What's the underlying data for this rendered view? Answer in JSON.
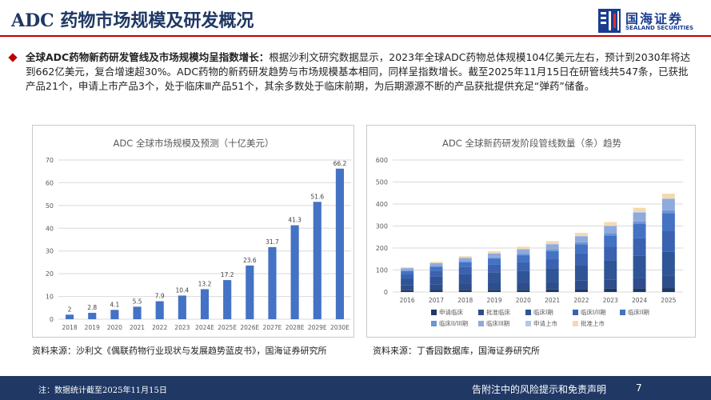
{
  "header": {
    "title": "ADC 药物市场规模及研发概况",
    "logo_cn": "国海证券",
    "logo_en": "SEALAND SECURITIES"
  },
  "summary": {
    "lead": "全球ADC药物新药研发管线及市场规模均呈指数增长：",
    "body": "根据沙利文研究数据显示，2023年全球ADC药物总体规模104亿美元左右，预计到2030年将达到662亿美元，复合增速超30%。ADC药物的新药研发趋势与市场规模基本相同，同样呈指数增长。截至2025年11月15日在研管线共547条，已获批产品21个，申请上市产品3个，处于临床Ⅲ产品51个，其余多数处于临床前期，为后期源源不断的产品获批提供充足“弹药”储备。"
  },
  "sources": {
    "left": "资料来源：沙利文《偶联药物行业现状与发展趋势蓝皮书》，国海证券研究所",
    "right": "资料来源：丁香园数据库，国海证券研究所"
  },
  "footer": {
    "note": "注：数据统计截至2025年11月15日",
    "disclaimer": "告附注中的风险提示和免责声明",
    "page": "7"
  },
  "colors": {
    "navy": "#1f3864",
    "red": "#c00000",
    "bar_blue": "#4472c4"
  },
  "chart_data": [
    {
      "type": "bar",
      "title": "ADC 全球市场规模及预测（十亿美元）",
      "categories": [
        "2018",
        "2019",
        "2020",
        "2021",
        "2022",
        "2023",
        "2024E",
        "2025E",
        "2026E",
        "2027E",
        "2028E",
        "2029E",
        "2030E"
      ],
      "values": [
        2,
        2.8,
        4.1,
        5.5,
        7.9,
        10.4,
        13.2,
        17.2,
        23.6,
        31.7,
        41.3,
        51.6,
        66.2
      ],
      "data_labels": [
        "2",
        "2.8",
        "4.1",
        "5.5",
        "7.9",
        "10.4",
        "13.2",
        "17.2",
        "23.6",
        "31.7",
        "41.3",
        "51.6",
        "66.2"
      ],
      "ylim": [
        0,
        70
      ],
      "yticks": [
        "0",
        "10",
        "20",
        "30",
        "40",
        "50",
        "60",
        "70"
      ],
      "grid": true,
      "legend": "none",
      "xlabel": "",
      "ylabel": ""
    },
    {
      "type": "bar",
      "stacked": true,
      "title": "ADC 全球新药研发阶段管线数量（条）趋势",
      "categories": [
        "2016",
        "2017",
        "2018",
        "2019",
        "2020",
        "2021",
        "2022",
        "2023",
        "2024",
        "2025"
      ],
      "ylim": [
        0,
        600
      ],
      "yticks": [
        "0",
        "100",
        "200",
        "300",
        "400",
        "500",
        "600"
      ],
      "grid": true,
      "legend": "bottom",
      "series": [
        {
          "name": "申请临床",
          "color": "#1f3864",
          "values": [
            8,
            9,
            10,
            10,
            10,
            12,
            14,
            15,
            16,
            18
          ]
        },
        {
          "name": "批准临床",
          "color": "#2e4d8a",
          "values": [
            22,
            25,
            28,
            30,
            32,
            35,
            38,
            42,
            48,
            55
          ]
        },
        {
          "name": "临床I期",
          "color": "#2f5597",
          "values": [
            30,
            38,
            45,
            50,
            55,
            60,
            70,
            85,
            100,
            110
          ]
        },
        {
          "name": "临床I/II期",
          "color": "#3a62b0",
          "values": [
            20,
            25,
            30,
            35,
            40,
            45,
            55,
            65,
            80,
            95
          ]
        },
        {
          "name": "临床II期",
          "color": "#4472c4",
          "values": [
            15,
            18,
            22,
            26,
            30,
            34,
            40,
            50,
            65,
            80
          ]
        },
        {
          "name": "临床II/III期",
          "color": "#6d95d6",
          "values": [
            3,
            4,
            5,
            6,
            7,
            8,
            9,
            10,
            12,
            14
          ]
        },
        {
          "name": "临床III期",
          "color": "#8faadc",
          "values": [
            10,
            12,
            15,
            18,
            20,
            23,
            27,
            32,
            40,
            51
          ]
        },
        {
          "name": "申请上市",
          "color": "#b4c7e7",
          "values": [
            1,
            1,
            1,
            2,
            2,
            2,
            2,
            3,
            3,
            3
          ]
        },
        {
          "name": "批准上市",
          "color": "#f4d9b0",
          "values": [
            4,
            5,
            7,
            8,
            10,
            12,
            14,
            16,
            19,
            21
          ]
        }
      ],
      "xlabel": "",
      "ylabel": ""
    }
  ]
}
